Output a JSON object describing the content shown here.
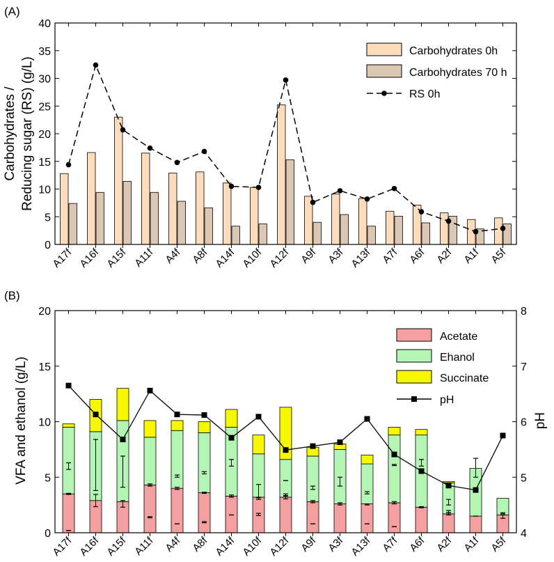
{
  "chart_data": [
    {
      "panel_label": "(A)",
      "type": "bar",
      "ylabel_lines": [
        "Carbohydrates /",
        "Reducing sugar (RS) (g/L)"
      ],
      "xlabel": "",
      "ylim": [
        0,
        40
      ],
      "yticks": [
        "0",
        "5",
        "10",
        "15",
        "20",
        "25",
        "30",
        "35",
        "40"
      ],
      "categories": [
        "A17f",
        "A16f",
        "A15f",
        "A11f",
        "A4f",
        "A8f",
        "A14f",
        "A10f",
        "A12f",
        "A9f",
        "A3f",
        "A13f",
        "A7f",
        "A6f",
        "A2f",
        "A1f",
        "A5f"
      ],
      "series": [
        {
          "name": "Carbohydrates 0h",
          "kind": "bar",
          "color": "#fddcbb",
          "values": [
            12.8,
            16.6,
            23.0,
            16.5,
            12.9,
            13.1,
            11.1,
            10.3,
            25.2,
            8.7,
            9.1,
            8.3,
            6.0,
            7.1,
            5.7,
            4.5,
            4.8
          ]
        },
        {
          "name": "Carbohydrates 70 h",
          "kind": "bar",
          "color": "#dcc6b4",
          "values": [
            7.4,
            9.4,
            11.4,
            9.4,
            7.8,
            6.6,
            3.3,
            3.7,
            15.3,
            4.0,
            5.4,
            3.3,
            5.1,
            3.9,
            5.1,
            2.8,
            3.7
          ]
        },
        {
          "name": "RS 0h",
          "kind": "line",
          "color": "#000000",
          "values": [
            14.4,
            32.4,
            20.7,
            17.4,
            14.8,
            16.8,
            10.5,
            10.3,
            29.7,
            7.6,
            9.7,
            8.2,
            10.1,
            5.9,
            4.2,
            2.3,
            2.9
          ]
        }
      ],
      "legend": "top-right"
    },
    {
      "panel_label": "(B)",
      "type": "bar",
      "stacked": true,
      "ylabel": "VFA and ethanol (g/L)",
      "y2label": "pH",
      "xlabel": "",
      "ylim": [
        0,
        20
      ],
      "y2lim": [
        4,
        8
      ],
      "yticks": [
        "0",
        "5",
        "10",
        "15",
        "20"
      ],
      "y2ticks": [
        "4",
        "5",
        "6",
        "7",
        "8"
      ],
      "categories": [
        "A17f",
        "A16f",
        "A15f",
        "A11f",
        "A4f",
        "A8f",
        "A14f",
        "A10f",
        "A12f",
        "A9f",
        "A3f",
        "A13f",
        "A7f",
        "A6f",
        "A2f",
        "A1f",
        "A5f"
      ],
      "series": [
        {
          "name": "Acetate",
          "kind": "bar",
          "color": "#f4a0a0",
          "values": [
            3.5,
            2.9,
            2.8,
            4.3,
            4.0,
            3.6,
            3.3,
            3.2,
            3.2,
            2.8,
            2.6,
            2.6,
            2.7,
            2.3,
            1.7,
            1.5,
            1.6
          ]
        },
        {
          "name": "Ehanol",
          "kind": "bar",
          "color": "#b3f5b3",
          "values": [
            6.0,
            6.2,
            7.3,
            4.3,
            5.2,
            5.4,
            6.2,
            3.9,
            3.4,
            4.1,
            4.9,
            3.6,
            6.1,
            6.5,
            2.8,
            4.3,
            1.5
          ]
        },
        {
          "name": "Succinate",
          "kind": "bar",
          "color": "#f7f700",
          "values": [
            0.3,
            2.9,
            2.9,
            1.5,
            0.9,
            1.0,
            1.6,
            1.7,
            4.7,
            0.8,
            0.5,
            0.8,
            0.7,
            0.5,
            0.1,
            0.0,
            0.0
          ]
        },
        {
          "name": "pH",
          "kind": "line",
          "axis": "right",
          "color": "#000000",
          "values": [
            6.65,
            6.13,
            5.68,
            6.56,
            6.13,
            6.12,
            5.71,
            6.09,
            5.49,
            5.56,
            5.63,
            6.05,
            5.41,
            5.11,
            4.85,
            4.77,
            5.75
          ]
        }
      ],
      "error_bars": [
        {
          "at": 3.5,
          "err": 0.05
        },
        {
          "at": 6.0,
          "err": 0.3
        },
        {
          "at": 0.2,
          "err": 0.0
        },
        {
          "at": 2.9,
          "err": 0.55
        },
        {
          "at": 6.1,
          "err": 2.3
        },
        {
          "at": 2.6,
          "err": 0.3
        },
        {
          "at": 5.5,
          "err": 1.4
        },
        {
          "at": 4.3,
          "err": 0.1
        },
        {
          "at": 1.4,
          "err": 0.05
        },
        {
          "at": 4.0,
          "err": 0.1
        },
        {
          "at": 5.1,
          "err": 0.1
        },
        {
          "at": 0.8,
          "err": 0.0
        },
        {
          "at": 3.6,
          "err": 0.05
        },
        {
          "at": 5.4,
          "err": 0.1
        },
        {
          "at": 0.95,
          "err": 0.05
        },
        {
          "at": 3.3,
          "err": 0.1
        },
        {
          "at": 6.3,
          "err": 0.3
        },
        {
          "at": 1.6,
          "err": 0.0
        },
        {
          "at": 3.1,
          "err": 0.1
        },
        {
          "at": 3.75,
          "err": 0.6
        },
        {
          "at": 1.65,
          "err": 0.1
        },
        {
          "at": 3.2,
          "err": 0.15
        },
        {
          "at": 3.4,
          "err": 0.1
        },
        {
          "at": 4.7,
          "err": 0.0
        },
        {
          "at": 2.8,
          "err": 0.1
        },
        {
          "at": 4.05,
          "err": 0.15
        },
        {
          "at": 0.8,
          "err": 0.0
        },
        {
          "at": 2.6,
          "err": 0.1
        },
        {
          "at": 4.6,
          "err": 0.4
        },
        {
          "at": 2.55,
          "err": 0.05
        },
        {
          "at": 3.6,
          "err": 0.1
        },
        {
          "at": 0.8,
          "err": 0.0
        },
        {
          "at": 2.7,
          "err": 0.1
        },
        {
          "at": 6.1,
          "err": 0.05
        },
        {
          "at": 0.55,
          "err": 0.0
        },
        {
          "at": 2.3,
          "err": 0.05
        },
        {
          "at": 6.3,
          "err": 0.3
        },
        {
          "at": 1.7,
          "err": 0.1
        },
        {
          "at": 2.75,
          "err": 0.25
        },
        {
          "at": 1.9,
          "err": 0.1
        },
        {
          "at": 1.5,
          "err": 0.0
        },
        {
          "at": 5.85,
          "err": 0.85
        },
        {
          "at": 1.45,
          "err": 0.15
        },
        {
          "at": 1.75,
          "err": 0.05
        }
      ],
      "legend": "top-right"
    }
  ]
}
